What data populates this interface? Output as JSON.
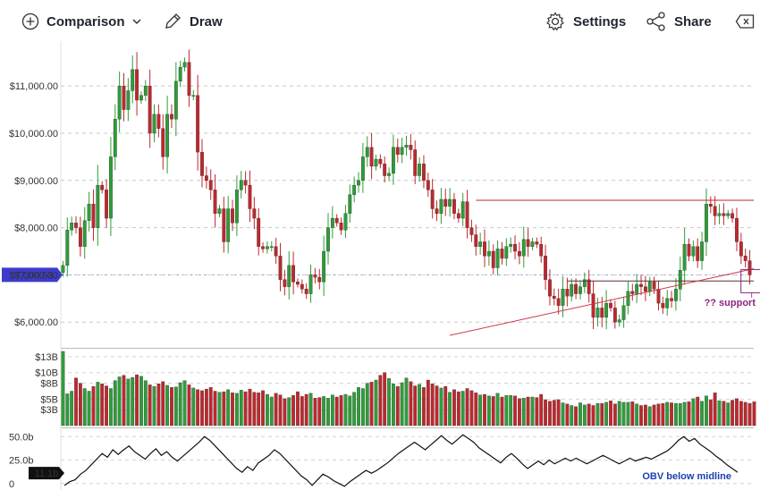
{
  "toolbar": {
    "comparison_label": "Comparison",
    "draw_label": "Draw",
    "settings_label": "Settings",
    "share_label": "Share"
  },
  "chart_data": {
    "type": "candlestick",
    "price_axis": {
      "ticks": [
        "$11,000.00",
        "$10,000.00",
        "$9,000.00",
        "$8,000.00",
        "$7,000.00",
        "$6,000.00"
      ],
      "tick_values": [
        11000,
        10000,
        9000,
        8000,
        7000,
        6000
      ],
      "ylim": [
        5550,
        11950
      ]
    },
    "current_price_label": "$7,000.53",
    "current_price": 7000.53,
    "resistance_level": 8580,
    "support_level": 6870,
    "trendline": {
      "from_candle": 89,
      "from_price": 5720,
      "to_candle": 150,
      "to_price": 6980
    },
    "support_annotation": "?? support",
    "colors": {
      "up": "#2e9d38",
      "down": "#c0272d",
      "resistance_line": "#c0272d",
      "support_line": "#5a3030",
      "trendline": "#d0364a",
      "current_price_tag": "#3d3ccb",
      "annotation": "#8a2580",
      "obv_label": "#1a3fb0"
    },
    "closes": [
      7200,
      7950,
      8100,
      8000,
      7600,
      8150,
      8500,
      8000,
      8900,
      8800,
      8200,
      9500,
      10300,
      11000,
      10500,
      10900,
      11350,
      10700,
      10800,
      11000,
      10000,
      10400,
      10100,
      9500,
      10400,
      10300,
      11100,
      11400,
      11500,
      10800,
      10800,
      9600,
      9100,
      9000,
      8800,
      8300,
      8400,
      7700,
      8400,
      8100,
      8800,
      9000,
      8900,
      8400,
      8200,
      7600,
      7550,
      7600,
      7600,
      7400,
      6900,
      6750,
      7200,
      6850,
      6800,
      6700,
      6600,
      7000,
      6950,
      6850,
      7500,
      8000,
      8200,
      8100,
      7950,
      8300,
      8700,
      8900,
      9000,
      9500,
      9700,
      9300,
      9450,
      9350,
      9100,
      9150,
      9700,
      9550,
      9700,
      9750,
      9650,
      9100,
      9350,
      9000,
      8800,
      8400,
      8300,
      8600,
      8450,
      8600,
      8300,
      8200,
      8550,
      8000,
      7850,
      7600,
      7700,
      7400,
      7500,
      7150,
      7550,
      7350,
      7600,
      7650,
      7500,
      7400,
      7750,
      7600,
      7700,
      7650,
      7400,
      6900,
      6550,
      6500,
      6350,
      6700,
      6550,
      6800,
      6600,
      6750,
      6900,
      6600,
      6100,
      6300,
      6100,
      6400,
      6300,
      6000,
      6050,
      6350,
      6650,
      6600,
      6800,
      6750,
      6650,
      6850,
      6700,
      6400,
      6300,
      6500,
      6450,
      6700,
      7100,
      7650,
      7400,
      7600,
      7300,
      7700,
      8500,
      8450,
      8250,
      8300,
      8250,
      8300,
      8200,
      7700,
      7400,
      7300,
      7000
    ],
    "volume_axis": {
      "ticks": [
        "$13B",
        "$10B",
        "$8B",
        "$5B",
        "$3B"
      ],
      "tick_values": [
        13,
        10,
        8,
        5,
        3
      ],
      "ylim": [
        0,
        14.5
      ]
    },
    "volume": [
      14,
      6,
      6.5,
      9,
      8,
      7,
      6.5,
      7.4,
      8.2,
      7.9,
      7.5,
      7,
      8.5,
      9.2,
      9.5,
      8.8,
      9.1,
      9.6,
      9.3,
      8.5,
      7.7,
      7.4,
      7.9,
      8.3,
      7.6,
      7.2,
      7.3,
      8.1,
      8.5,
      7.7,
      7.1,
      6.8,
      6.6,
      6.9,
      7.2,
      6.5,
      6.3,
      6.4,
      6.8,
      6.2,
      6.1,
      6.7,
      6.4,
      6.9,
      6.3,
      6.2,
      6.6,
      5.9,
      5.4,
      6.1,
      5.8,
      5.1,
      5.3,
      5.7,
      6.4,
      5.5,
      5.9,
      6.1,
      5.2,
      5.3,
      5.5,
      5.2,
      5.8,
      5.4,
      5.7,
      5.9,
      5.6,
      6.3,
      7.2,
      7,
      8,
      8.2,
      8.6,
      9.5,
      10,
      8.9,
      7.9,
      7.4,
      8.1,
      9,
      8.3,
      7.5,
      7.8,
      7.2,
      8.6,
      7.9,
      7.5,
      7.1,
      7.4,
      6.3,
      6.8,
      6.4,
      6.5,
      7,
      6.6,
      6.2,
      5.8,
      5.9,
      5.6,
      5.5,
      6.1,
      5.4,
      5.7,
      5.7,
      5.6,
      5.1,
      5.2,
      5.4,
      5.4,
      5.3,
      5.9,
      4.9,
      4.6,
      4.8,
      4.9,
      4.3,
      4.1,
      3.8,
      3.6,
      4.3,
      3.9,
      4.1,
      3.8,
      4.2,
      4.2,
      4.4,
      4.7,
      4.1,
      4.6,
      4.4,
      4.4,
      4.5,
      4.1,
      3.8,
      3.9,
      3.6,
      3.9,
      4.1,
      4.2,
      4.4,
      4.3,
      4.2,
      4.2,
      4.4,
      4.5,
      5.1,
      5.4,
      4.6,
      5.6,
      4.9,
      6.2,
      4.7,
      4.6,
      4.3,
      4.8,
      5.1,
      4.6,
      4.4,
      4.2,
      4.5
    ],
    "obv_axis": {
      "ticks": [
        "50.0b",
        "25.0b",
        "0"
      ],
      "tick_values": [
        50,
        25,
        0
      ],
      "ylim": [
        -5,
        56
      ]
    },
    "obv_current_label": "11.1b",
    "obv_annotation": "OBV below midline",
    "obv_series": [
      -2,
      2,
      4,
      10,
      14,
      20,
      26,
      32,
      28,
      36,
      31,
      36,
      40,
      34,
      30,
      26,
      32,
      37,
      30,
      34,
      28,
      24,
      29,
      34,
      39,
      44,
      50,
      46,
      40,
      34,
      28,
      22,
      16,
      12,
      18,
      14,
      22,
      26,
      30,
      36,
      32,
      26,
      20,
      14,
      8,
      4,
      -2,
      4,
      10,
      7,
      3,
      0,
      -3,
      2,
      6,
      10,
      14,
      11,
      14,
      18,
      22,
      27,
      32,
      36,
      40,
      44,
      40,
      36,
      41,
      46,
      51,
      46,
      42,
      47,
      52,
      48,
      44,
      38,
      34,
      30,
      26,
      22,
      28,
      32,
      27,
      21,
      16,
      20,
      24,
      20,
      25,
      21,
      24,
      27,
      24,
      27,
      24,
      21,
      24,
      27,
      30,
      27,
      24,
      21,
      24,
      27,
      24,
      26,
      28,
      26,
      29,
      32,
      35,
      40,
      46,
      50,
      45,
      48,
      42,
      38,
      34,
      29,
      25,
      20,
      16,
      12
    ]
  }
}
